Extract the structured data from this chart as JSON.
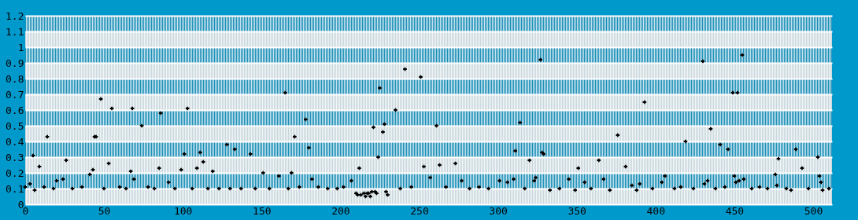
{
  "chart_data": {
    "type": "scatter",
    "marker": "cross",
    "grid": "y",
    "color": "#000000",
    "xlim": [
      0,
      512
    ],
    "ylim": [
      0,
      1.2
    ],
    "xticks": [
      0,
      50,
      100,
      150,
      200,
      250,
      300,
      350,
      400,
      450,
      500
    ],
    "yticks": [
      0,
      0.1,
      0.2,
      0.3,
      0.4,
      0.5,
      0.6,
      0.7,
      0.8,
      0.9,
      1,
      1.1,
      1.2
    ],
    "x": [
      0,
      3,
      5,
      6,
      9,
      12,
      14,
      18,
      20,
      24,
      26,
      30,
      36,
      41,
      43,
      44,
      45,
      48,
      50,
      53,
      55,
      60,
      64,
      67,
      68,
      69,
      74,
      78,
      82,
      85,
      86,
      91,
      95,
      99,
      101,
      103,
      106,
      109,
      111,
      113,
      116,
      119,
      123,
      128,
      130,
      133,
      137,
      143,
      146,
      151,
      155,
      161,
      165,
      167,
      169,
      171,
      174,
      178,
      180,
      182,
      186,
      192,
      198,
      202,
      207,
      210,
      211,
      212,
      213,
      215,
      216,
      217,
      218,
      219,
      220,
      221,
      222,
      223,
      224,
      225,
      227,
      228,
      229,
      230,
      235,
      238,
      241,
      245,
      251,
      253,
      257,
      261,
      263,
      267,
      273,
      277,
      282,
      288,
      294,
      301,
      306,
      310,
      311,
      314,
      317,
      320,
      323,
      324,
      327,
      328,
      329,
      333,
      339,
      345,
      349,
      351,
      355,
      359,
      364,
      367,
      371,
      376,
      381,
      385,
      388,
      390,
      393,
      398,
      404,
      406,
      412,
      416,
      419,
      424,
      430,
      431,
      433,
      435,
      438,
      441,
      444,
      446,
      449,
      450,
      451,
      452,
      453,
      455,
      456,
      461,
      466,
      471,
      476,
      477,
      478,
      483,
      486,
      489,
      493,
      497,
      503,
      504,
      505,
      506,
      510
    ],
    "values": [
      0.11,
      0.13,
      0.31,
      0.09,
      0.24,
      0.11,
      0.43,
      0.1,
      0.15,
      0.16,
      0.28,
      0.1,
      0.11,
      0.19,
      0.22,
      0.43,
      0.43,
      0.67,
      0.1,
      0.26,
      0.61,
      0.11,
      0.1,
      0.21,
      0.61,
      0.16,
      0.5,
      0.11,
      0.1,
      0.23,
      0.58,
      0.14,
      0.1,
      0.22,
      0.32,
      0.61,
      0.1,
      0.23,
      0.33,
      0.27,
      0.1,
      0.21,
      0.1,
      0.38,
      0.1,
      0.35,
      0.1,
      0.32,
      0.1,
      0.2,
      0.1,
      0.18,
      0.71,
      0.1,
      0.2,
      0.43,
      0.11,
      0.54,
      0.36,
      0.16,
      0.11,
      0.1,
      0.1,
      0.11,
      0.15,
      0.07,
      0.06,
      0.23,
      0.06,
      0.07,
      0.05,
      0.07,
      0.07,
      0.05,
      0.08,
      0.49,
      0.08,
      0.07,
      0.3,
      0.74,
      0.46,
      0.51,
      0.08,
      0.06,
      0.6,
      0.1,
      0.86,
      0.11,
      0.81,
      0.24,
      0.17,
      0.5,
      0.25,
      0.11,
      0.26,
      0.15,
      0.1,
      0.11,
      0.1,
      0.15,
      0.14,
      0.16,
      0.34,
      0.52,
      0.1,
      0.28,
      0.15,
      0.17,
      0.92,
      0.33,
      0.32,
      0.09,
      0.1,
      0.16,
      0.09,
      0.23,
      0.14,
      0.1,
      0.28,
      0.16,
      0.09,
      0.44,
      0.24,
      0.12,
      0.09,
      0.13,
      0.65,
      0.1,
      0.14,
      0.18,
      0.1,
      0.11,
      0.4,
      0.1,
      0.91,
      0.13,
      0.15,
      0.48,
      0.1,
      0.38,
      0.11,
      0.35,
      0.71,
      0.18,
      0.14,
      0.71,
      0.15,
      0.95,
      0.16,
      0.1,
      0.11,
      0.1,
      0.19,
      0.12,
      0.29,
      0.1,
      0.09,
      0.35,
      0.23,
      0.1,
      0.3,
      0.18,
      0.14,
      0.09,
      0.1
    ]
  }
}
